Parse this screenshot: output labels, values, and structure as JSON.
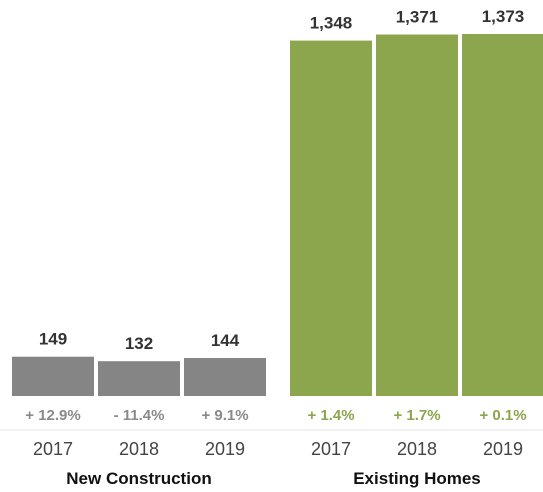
{
  "chart_data": {
    "type": "bar",
    "groups": [
      {
        "name": "New Construction",
        "color": "#858585",
        "pct_color": "#8a8a8a",
        "bars": [
          {
            "year": "2017",
            "value": 149,
            "label": "149",
            "change": "+ 12.9%"
          },
          {
            "year": "2018",
            "value": 132,
            "label": "132",
            "change": "- 11.4%"
          },
          {
            "year": "2019",
            "value": 144,
            "label": "144",
            "change": "+ 9.1%"
          }
        ]
      },
      {
        "name": "Existing Homes",
        "color": "#8ca64d",
        "pct_color": "#8ca64d",
        "bars": [
          {
            "year": "2017",
            "value": 1348,
            "label": "1,348",
            "change": "+ 1.4%"
          },
          {
            "year": "2018",
            "value": 1371,
            "label": "1,371",
            "change": "+ 1.7%"
          },
          {
            "year": "2019",
            "value": 1373,
            "label": "1,373",
            "change": "+ 0.1%"
          }
        ]
      }
    ],
    "ylim": [
      0,
      1373
    ]
  }
}
